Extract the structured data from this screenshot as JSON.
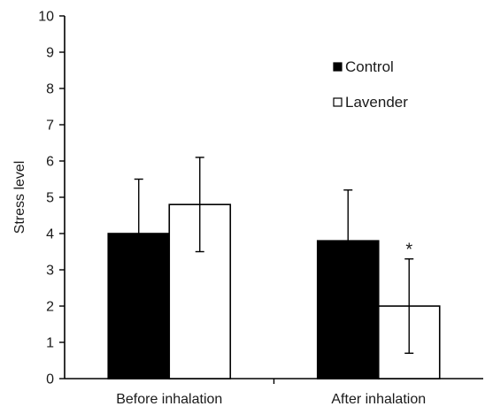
{
  "chart_data": {
    "type": "bar",
    "xlabel": "",
    "ylabel": "Stress level",
    "ylim": [
      0,
      10
    ],
    "yticks": [
      "0",
      "1",
      "2",
      "3",
      "4",
      "5",
      "6",
      "7",
      "8",
      "9",
      "10"
    ],
    "categories": [
      "Before inhalation",
      "After inhalation"
    ],
    "series": [
      {
        "name": "Control",
        "values": [
          4.0,
          3.8
        ],
        "errors": [
          1.5,
          1.4
        ],
        "color": "#000000"
      },
      {
        "name": "Lavender",
        "values": [
          4.8,
          2.0
        ],
        "errors": [
          1.3,
          1.3
        ],
        "color": "#ffffff"
      }
    ],
    "annotations": [
      {
        "text": "*",
        "category": 1,
        "series": 1
      }
    ],
    "legend_position": "top-right",
    "grid": false
  }
}
